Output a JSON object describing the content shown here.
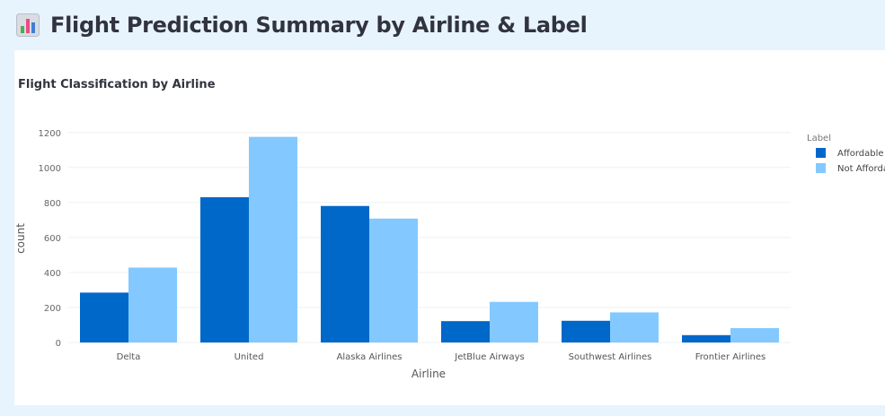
{
  "header": {
    "title": "Flight Prediction Summary by Airline & Label",
    "icon": "bar-chart-icon"
  },
  "chart_data": {
    "type": "bar",
    "title": "Flight Classification by Airline",
    "xlabel": "Airline",
    "ylabel": "count",
    "ylim": [
      0,
      1250
    ],
    "yticks": [
      0,
      200,
      400,
      600,
      800,
      1000,
      1200
    ],
    "grid": true,
    "legend_title": "Label",
    "legend_placement": "top-right",
    "categories": [
      "Delta",
      "United",
      "Alaska Airlines",
      "JetBlue Airways",
      "Southwest Airlines",
      "Frontier Airlines"
    ],
    "series": [
      {
        "name": "Affordable",
        "color": "#0068c9",
        "values": [
          285,
          830,
          780,
          122,
          124,
          42
        ]
      },
      {
        "name": "Not Affordable",
        "color": "#83c9ff",
        "values": [
          428,
          1175,
          708,
          232,
          172,
          82
        ]
      }
    ]
  }
}
